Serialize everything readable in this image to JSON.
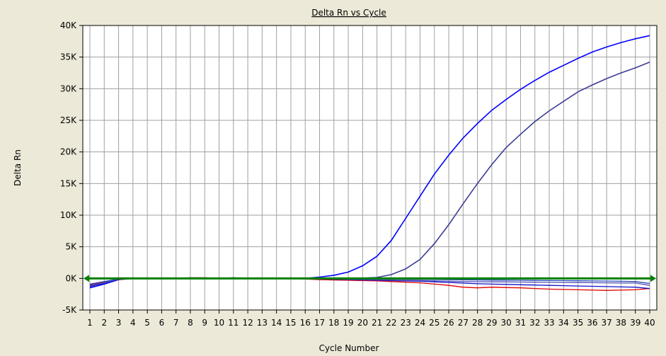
{
  "chart_data": {
    "type": "line",
    "title": "Delta Rn vs Cycle",
    "xlabel": "Cycle Number",
    "ylabel": "Delta Rn",
    "xlim": [
      1,
      40
    ],
    "ylim": [
      -5000,
      40000
    ],
    "x_ticks": [
      1,
      2,
      3,
      4,
      5,
      6,
      7,
      8,
      9,
      10,
      11,
      12,
      13,
      14,
      15,
      16,
      17,
      18,
      19,
      20,
      21,
      22,
      23,
      24,
      25,
      26,
      27,
      28,
      29,
      30,
      31,
      32,
      33,
      34,
      35,
      36,
      37,
      38,
      39,
      40
    ],
    "y_ticks": [
      {
        "value": -5000,
        "label": "-5K"
      },
      {
        "value": 0,
        "label": "0K"
      },
      {
        "value": 5000,
        "label": "5K"
      },
      {
        "value": 10000,
        "label": "10K"
      },
      {
        "value": 15000,
        "label": "15K"
      },
      {
        "value": 20000,
        "label": "20K"
      },
      {
        "value": 25000,
        "label": "25K"
      },
      {
        "value": 30000,
        "label": "30K"
      },
      {
        "value": 35000,
        "label": "35K"
      },
      {
        "value": 40000,
        "label": "40K"
      }
    ],
    "grid": true,
    "threshold": 0,
    "threshold_color": "#008000",
    "series": [
      {
        "color": "#0000FF",
        "values": [
          -1500,
          -900,
          -200,
          0,
          0,
          0,
          0,
          0,
          0,
          0,
          0,
          0,
          0,
          0,
          0,
          0,
          200,
          500,
          1000,
          2000,
          3500,
          6000,
          9500,
          13000,
          16500,
          19500,
          22200,
          24500,
          26600,
          28300,
          29900,
          31300,
          32600,
          33700,
          34800,
          35800,
          36600,
          37300,
          37900,
          38400
        ]
      },
      {
        "color": "#3C3C96",
        "values": [
          -1300,
          -700,
          -100,
          0,
          0,
          0,
          0,
          0,
          0,
          0,
          0,
          0,
          0,
          0,
          0,
          0,
          0,
          0,
          0,
          50,
          150,
          600,
          1500,
          3000,
          5500,
          8500,
          11800,
          15000,
          18000,
          20700,
          22800,
          24800,
          26500,
          28000,
          29500,
          30600,
          31600,
          32500,
          33300,
          34200
        ]
      },
      {
        "color": "#E00000",
        "values": [
          -1000,
          -600,
          -200,
          0,
          0,
          0,
          0,
          100,
          100,
          0,
          0,
          0,
          0,
          0,
          0,
          -100,
          -200,
          -250,
          -300,
          -350,
          -400,
          -500,
          -600,
          -700,
          -900,
          -1100,
          -1400,
          -1500,
          -1400,
          -1450,
          -1500,
          -1600,
          -1700,
          -1750,
          -1800,
          -1850,
          -1900,
          -1850,
          -1800,
          -1600
        ]
      },
      {
        "color": "#1010C8",
        "values": [
          -1200,
          -800,
          -150,
          0,
          0,
          0,
          0,
          0,
          0,
          0,
          100,
          0,
          0,
          0,
          0,
          -50,
          -100,
          -150,
          -200,
          -250,
          -300,
          -350,
          -400,
          -450,
          -550,
          -650,
          -750,
          -850,
          -900,
          -950,
          -1000,
          -1050,
          -1100,
          -1150,
          -1200,
          -1250,
          -1300,
          -1350,
          -1400,
          -1600
        ]
      },
      {
        "color": "#5050B4",
        "values": [
          -1100,
          -700,
          -100,
          0,
          0,
          0,
          0,
          0,
          0,
          0,
          0,
          0,
          0,
          0,
          0,
          -50,
          -80,
          -100,
          -150,
          -180,
          -200,
          -250,
          -300,
          -350,
          -400,
          -450,
          -500,
          -520,
          -540,
          -560,
          -580,
          -600,
          -620,
          -640,
          -660,
          -680,
          -700,
          -720,
          -740,
          -1100
        ]
      },
      {
        "color": "#1E46B4",
        "values": [
          -900,
          -500,
          -100,
          0,
          0,
          0,
          0,
          0,
          0,
          0,
          0,
          0,
          0,
          0,
          0,
          0,
          -20,
          -40,
          -60,
          -80,
          -100,
          -120,
          -140,
          -160,
          -180,
          -200,
          -220,
          -240,
          -260,
          -280,
          -300,
          -320,
          -340,
          -360,
          -380,
          -400,
          -420,
          -450,
          -500,
          -800
        ]
      }
    ]
  }
}
